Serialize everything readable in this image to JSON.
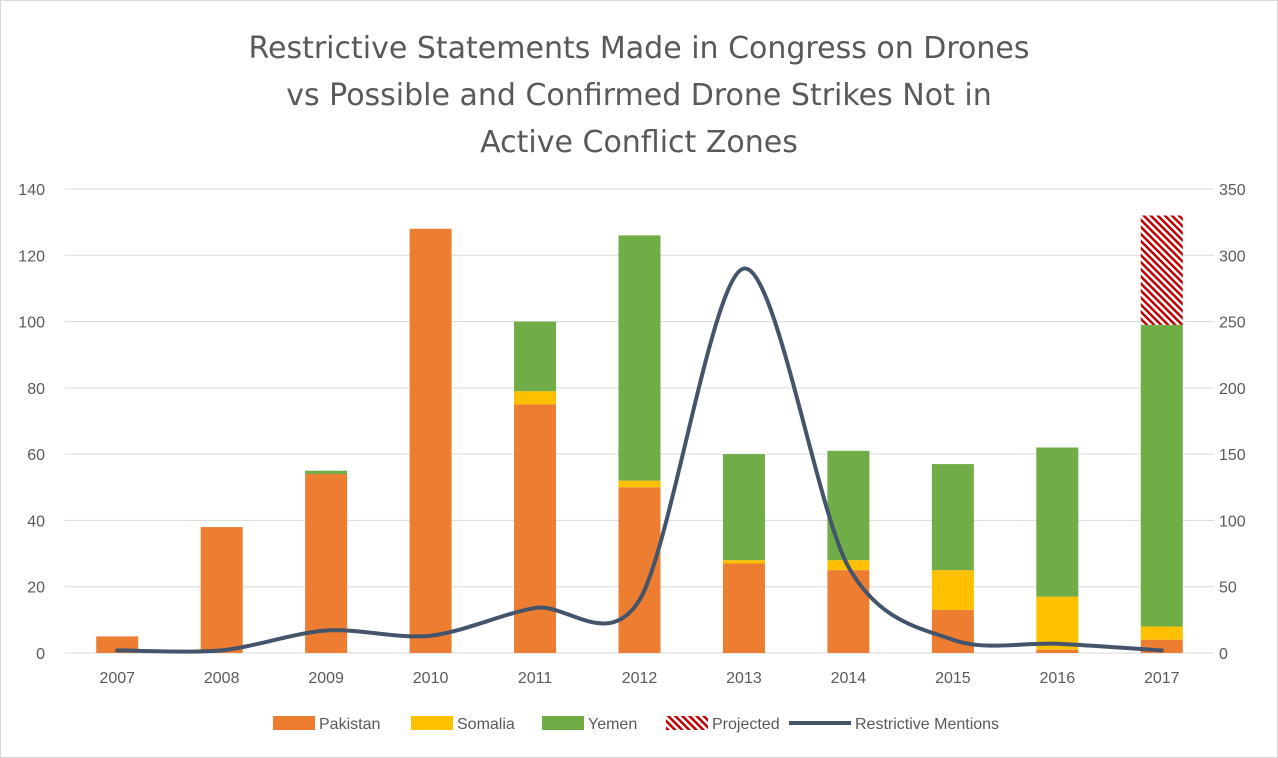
{
  "chart_data": {
    "type": "bar",
    "title_lines": [
      "Restrictive Statements Made in Congress on Drones",
      "vs Possible and Confirmed Drone Strikes Not in",
      "Active Conflict Zones"
    ],
    "categories": [
      "2007",
      "2008",
      "2009",
      "2010",
      "2011",
      "2012",
      "2013",
      "2014",
      "2015",
      "2016",
      "2017"
    ],
    "stacked": true,
    "y_left": {
      "ylim": [
        0,
        140
      ],
      "ticks": [
        0,
        20,
        40,
        60,
        80,
        100,
        120,
        140
      ]
    },
    "y_right": {
      "ylim": [
        0,
        350
      ],
      "ticks": [
        0,
        50,
        100,
        150,
        200,
        250,
        300,
        350
      ]
    },
    "series": [
      {
        "name": "Pakistan",
        "type": "bar",
        "axis": "left",
        "color": "#ED7D31",
        "values": [
          5,
          38,
          54,
          128,
          75,
          50,
          27,
          25,
          13,
          1,
          4
        ]
      },
      {
        "name": "Somalia",
        "type": "bar",
        "axis": "left",
        "color": "#FFC000",
        "values": [
          0,
          0,
          0,
          0,
          4,
          2,
          1,
          3,
          12,
          16,
          4
        ]
      },
      {
        "name": "Yemen",
        "type": "bar",
        "axis": "left",
        "color": "#70AD47",
        "values": [
          0,
          0,
          1,
          0,
          21,
          74,
          32,
          33,
          32,
          45,
          91
        ]
      },
      {
        "name": "Projected",
        "type": "bar",
        "axis": "left",
        "color": "#C00000",
        "pattern": "hatched",
        "values": [
          0,
          0,
          0,
          0,
          0,
          0,
          0,
          0,
          0,
          0,
          33
        ]
      },
      {
        "name": "Restrictive Mentions",
        "type": "line",
        "axis": "right",
        "color": "#44546A",
        "smooth": true,
        "values": [
          2,
          2,
          17,
          13,
          34,
          40,
          290,
          65,
          10,
          7,
          2
        ]
      }
    ],
    "legend": {
      "placement": "bottom",
      "items": [
        {
          "name": "Pakistan",
          "kind": "bar",
          "color": "#ED7D31"
        },
        {
          "name": "Somalia",
          "kind": "bar",
          "color": "#FFC000"
        },
        {
          "name": "Yemen",
          "kind": "bar",
          "color": "#70AD47"
        },
        {
          "name": "Projected",
          "kind": "hatched",
          "color": "#C00000"
        },
        {
          "name": "Restrictive Mentions",
          "kind": "line",
          "color": "#44546A"
        }
      ]
    },
    "grid": true,
    "gridColor": "#d9d9d9",
    "axisLabelColor": "#595959"
  }
}
